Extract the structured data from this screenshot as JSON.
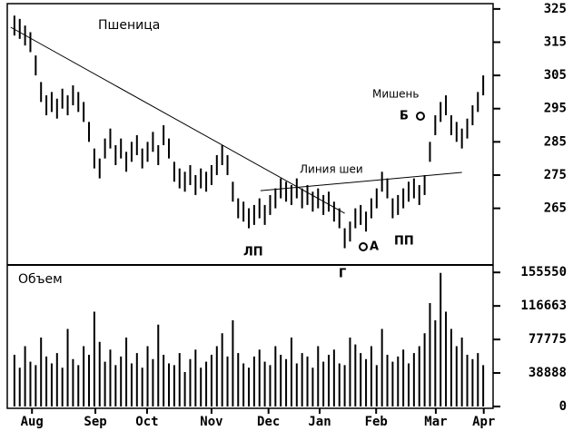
{
  "chart_data": [
    {
      "type": "range-bar",
      "title": "Пшеница",
      "x": [
        1,
        2,
        3,
        4,
        5,
        6,
        7,
        8,
        9,
        10,
        11,
        12,
        13,
        14,
        15,
        16,
        17,
        18,
        19,
        20,
        21,
        22,
        23,
        24,
        25,
        26,
        27,
        28,
        29,
        30,
        31,
        32,
        33,
        34,
        35,
        36,
        37,
        38,
        39,
        40,
        41,
        42,
        43,
        44,
        45,
        46,
        47,
        48,
        49,
        50,
        51,
        52,
        53,
        54,
        55,
        56,
        57,
        58,
        59,
        60,
        61,
        62,
        63,
        64,
        65,
        66,
        67,
        68,
        69,
        70,
        71,
        72,
        73,
        74,
        75,
        76,
        77,
        78,
        79,
        80,
        81,
        82,
        83,
        84,
        85,
        86,
        87,
        88,
        89
      ],
      "high": [
        323,
        322,
        320,
        318,
        311,
        303,
        299,
        300,
        298,
        301,
        299,
        302,
        300,
        297,
        291,
        283,
        280,
        286,
        289,
        284,
        286,
        282,
        285,
        287,
        283,
        285,
        288,
        284,
        290,
        286,
        279,
        277,
        276,
        278,
        275,
        277,
        276,
        278,
        281,
        284,
        281,
        273,
        268,
        267,
        265,
        266,
        268,
        266,
        269,
        271,
        274,
        273,
        272,
        274,
        271,
        272,
        270,
        271,
        269,
        270,
        267,
        265,
        259,
        261,
        265,
        266,
        264,
        268,
        271,
        276,
        274,
        268,
        269,
        271,
        273,
        274,
        272,
        275,
        285,
        293,
        297,
        299,
        293,
        291,
        289,
        292,
        296,
        300,
        305
      ],
      "low": [
        317,
        316,
        314,
        312,
        305,
        297,
        293,
        294,
        292,
        295,
        293,
        296,
        294,
        291,
        285,
        277,
        274,
        280,
        283,
        278,
        280,
        276,
        279,
        281,
        277,
        279,
        282,
        278,
        284,
        280,
        273,
        271,
        270,
        272,
        269,
        271,
        270,
        272,
        275,
        278,
        275,
        267,
        262,
        261,
        259,
        260,
        262,
        260,
        263,
        265,
        268,
        267,
        266,
        268,
        265,
        266,
        264,
        265,
        263,
        264,
        261,
        259,
        253,
        255,
        259,
        260,
        258,
        262,
        265,
        270,
        268,
        262,
        263,
        265,
        267,
        268,
        266,
        269,
        279,
        287,
        291,
        293,
        287,
        285,
        283,
        286,
        290,
        294,
        299
      ],
      "xlim": [
        0,
        90
      ],
      "ylim": [
        248.5,
        326.6
      ],
      "yticks": [
        265,
        275,
        285,
        295,
        305,
        315,
        325
      ],
      "lines": [
        {
          "x": [
            0.3,
            63
          ],
          "y": [
            319.5,
            263.5
          ]
        },
        {
          "x": [
            47.2,
            85
          ],
          "y": [
            270.3,
            275.8
          ]
        }
      ],
      "annotations": [
        "Линия шеи",
        "Мишень",
        "ЛП",
        "Г",
        "ПП",
        "А",
        "Б"
      ]
    },
    {
      "type": "bar",
      "title": "Объем",
      "values": [
        60000,
        45000,
        70000,
        52000,
        48000,
        80000,
        58000,
        50000,
        62000,
        45000,
        90000,
        55000,
        48000,
        70000,
        60000,
        110000,
        75000,
        52000,
        66000,
        48000,
        58000,
        80000,
        50000,
        62000,
        45000,
        70000,
        55000,
        95000,
        60000,
        50000,
        48000,
        62000,
        40000,
        55000,
        66000,
        45000,
        52000,
        60000,
        70000,
        85000,
        58000,
        100000,
        62000,
        50000,
        45000,
        58000,
        66000,
        52000,
        48000,
        70000,
        60000,
        55000,
        80000,
        50000,
        62000,
        58000,
        45000,
        70000,
        52000,
        60000,
        66000,
        50000,
        48000,
        80000,
        72000,
        62000,
        55000,
        70000,
        48000,
        90000,
        60000,
        52000,
        58000,
        66000,
        50000,
        62000,
        70000,
        85000,
        120000,
        100000,
        155000,
        110000,
        90000,
        70000,
        80000,
        60000,
        55000,
        62000,
        48000
      ],
      "xlim": [
        0,
        90
      ],
      "ylim": [
        0,
        160000
      ],
      "yticks": [
        0,
        38888,
        77775,
        116663,
        155550
      ],
      "xticks": [
        {
          "value": 4.3,
          "label": "Aug"
        },
        {
          "value": 16.2,
          "label": "Sep"
        },
        {
          "value": 25.9,
          "label": "Oct"
        },
        {
          "value": 38,
          "label": "Nov"
        },
        {
          "value": 48.7,
          "label": "Dec"
        },
        {
          "value": 58.3,
          "label": "Jan"
        },
        {
          "value": 68.9,
          "label": "Feb"
        },
        {
          "value": 80.1,
          "label": "Mar"
        },
        {
          "value": 89.1,
          "label": "Apr"
        }
      ]
    }
  ]
}
